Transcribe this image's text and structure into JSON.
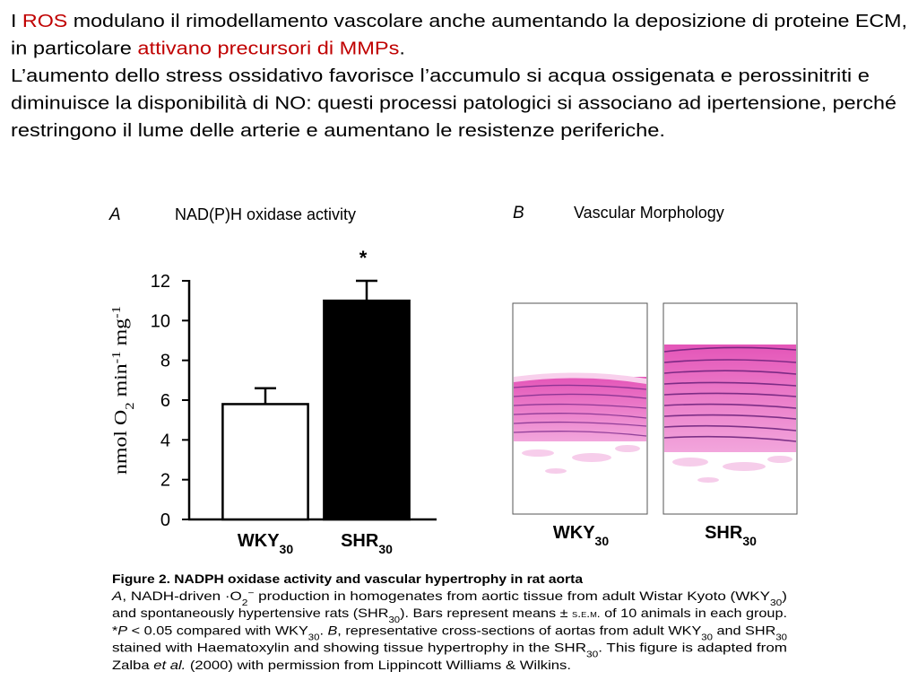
{
  "text": {
    "lines": [
      [
        {
          "text": "I "
        },
        {
          "text": "ROS",
          "color": "#c00000"
        },
        {
          "text": " modulano il rimodellamento vascolare anche aumentando la deposizione di proteine ECM,"
        }
      ],
      [
        {
          "text": "in particolare "
        },
        {
          "text": "attivano precursori di MMPs",
          "color": "#c00000"
        },
        {
          "text": "."
        }
      ],
      [
        {
          "text": "L’aumento dello stress ossidativo favorisce l’accumulo si acqua ossigenata e perossinitriti e"
        }
      ],
      [
        {
          "text": "diminuisce la disponibilità di NO: questi processi patologici si associano ad ipertensione, perché"
        }
      ],
      [
        {
          "text": "restringono il lume delle arterie e aumentano le resistenze periferiche."
        }
      ]
    ]
  },
  "chart_data": {
    "type": "bar",
    "panel_label": "A",
    "title": "NAD(P)H oxidase activity",
    "ylabel": [
      {
        "text": "nmol O"
      },
      {
        "text": "2",
        "style": "sub"
      },
      {
        "text": " min"
      },
      {
        "text": "-1",
        "style": "sup"
      },
      {
        "text": " mg"
      },
      {
        "text": "-1",
        "style": "sup"
      }
    ],
    "categories": [
      "WKY",
      "SHR"
    ],
    "category_subscripts": [
      "30",
      "30"
    ],
    "values": [
      5.8,
      11.0
    ],
    "errors": [
      0.8,
      1.0
    ],
    "colors": [
      "#ffffff",
      "#000000"
    ],
    "annotation": "*",
    "ylim": [
      0,
      12
    ],
    "yticks": [
      0,
      2,
      4,
      6,
      8,
      10,
      12
    ]
  },
  "panel_b": {
    "label": "B",
    "title": "Vascular Morphology",
    "images": [
      {
        "name": "WKY",
        "sub": "30"
      },
      {
        "name": "SHR",
        "sub": "30"
      }
    ]
  },
  "caption": {
    "title": "Figure 2.  NADPH oxidase activity and vascular hypertrophy in rat aorta",
    "lines": [
      [
        {
          "text": "A",
          "style": "italic"
        },
        {
          "text": ", NADH-driven ·O"
        },
        {
          "text": "2",
          "style": "sub"
        },
        {
          "text": "−",
          "style": "sup"
        },
        {
          "text": " production in homogenates from aortic tissue from adult Wistar Kyoto (WKY"
        },
        {
          "text": "30",
          "style": "sub"
        },
        {
          "text": ")"
        }
      ],
      [
        {
          "text": "and spontaneously hypertensive rats (SHR"
        },
        {
          "text": "30",
          "style": "sub"
        },
        {
          "text": "). Bars represent means ± "
        },
        {
          "text": "s.e.m.",
          "style": "smallcaps"
        },
        {
          "text": " of 10 animals in each group."
        }
      ],
      [
        {
          "text": "*"
        },
        {
          "text": "P",
          "style": "italic"
        },
        {
          "text": " < 0.05 compared with WKY"
        },
        {
          "text": "30",
          "style": "sub"
        },
        {
          "text": ". "
        },
        {
          "text": "B",
          "style": "italic"
        },
        {
          "text": ", representative cross-sections of aortas from adult WKY"
        },
        {
          "text": "30",
          "style": "sub"
        },
        {
          "text": " and SHR"
        },
        {
          "text": "30",
          "style": "sub"
        }
      ],
      [
        {
          "text": "stained with Haematoxylin and showing tissue hypertrophy in the SHR"
        },
        {
          "text": "30",
          "style": "sub"
        },
        {
          "text": ". This figure is adapted from"
        }
      ],
      [
        {
          "text": "Zalba "
        },
        {
          "text": "et al.",
          "style": "italic"
        },
        {
          "text": " (2000) with permission from Lippincott Williams & Wilkins."
        }
      ]
    ]
  }
}
